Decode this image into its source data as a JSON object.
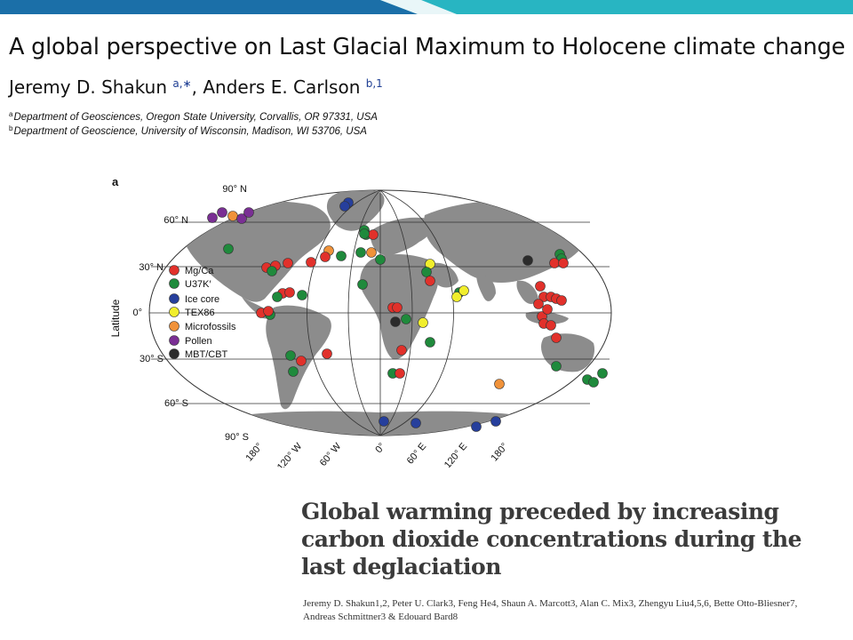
{
  "paper1": {
    "title": "A global perspective on Last Glacial Maximum to Holocene climate change",
    "author1": "Jeremy D. Shakun",
    "author1_sup": "a,∗",
    "separator": ", ",
    "author2": "Anders E. Carlson",
    "author2_sup": "b,1",
    "affiliation_a_mark": "a",
    "affiliation_a": "Department of Geosciences, Oregon State University, Corvallis, OR 97331, USA",
    "affiliation_b_mark": "b",
    "affiliation_b": "Department of Geoscience, University of Wisconsin, Madison, WI 53706, USA"
  },
  "figure": {
    "panel_label": "a",
    "y_axis_label": "Latitude",
    "lat_labels": [
      "90° N",
      "60° N",
      "30° N",
      "0°",
      "30° S",
      "60° S",
      "90° S"
    ],
    "lon_labels": [
      "180°",
      "120° W",
      "60° W",
      "0°",
      "60° E",
      "120° E",
      "180°"
    ],
    "legend": [
      {
        "label": "Mg/Ca",
        "color": "#e1312b"
      },
      {
        "label": "U37K′",
        "color": "#1f8a3c"
      },
      {
        "label": "Ice core",
        "color": "#263f9c"
      },
      {
        "label": "TEX86",
        "color": "#f1ee2c"
      },
      {
        "label": "Microfossils",
        "color": "#f0923a"
      },
      {
        "label": "Pollen",
        "color": "#7a2f94"
      },
      {
        "label": "MBT/CBT",
        "color": "#2b2b2b"
      }
    ],
    "colors": {
      "land": "#8c8c8c",
      "ocean": "#ffffff",
      "grid": "#333333"
    }
  },
  "paper2": {
    "title_line1": "Global warming preceded by increasing",
    "title_line2": "carbon dioxide concentrations during the",
    "title_line3": "last deglaciation",
    "authors_line1": "Jeremy D. Shakun1,2, Peter U. Clark3, Feng He4, Shaun A. Marcott3, Alan C. Mix3, Zhengyu Liu4,5,6, Bette Otto-Bliesner7,",
    "authors_line2": "Andreas Schmittner3 & Edouard Bard8"
  },
  "theme": {
    "accent_teal": "#28b5c2",
    "accent_blue": "#1b6fa8",
    "link_blue": "#1f3f94"
  }
}
